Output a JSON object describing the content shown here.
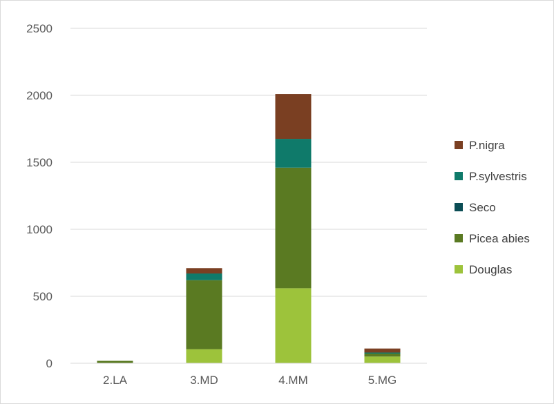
{
  "chart_data": {
    "type": "bar",
    "stacked": true,
    "categories": [
      "2.LA",
      "3.MD",
      "4.MM",
      "5.MG"
    ],
    "series": [
      {
        "name": "Douglas",
        "color": "#9dc33b",
        "values": [
          0,
          105,
          560,
          50
        ]
      },
      {
        "name": "Picea abies",
        "color": "#5a7a22",
        "values": [
          18,
          515,
          900,
          22
        ]
      },
      {
        "name": "Seco",
        "color": "#0b4d55",
        "values": [
          0,
          0,
          0,
          0
        ]
      },
      {
        "name": "P.sylvestris",
        "color": "#0f7a6a",
        "values": [
          0,
          50,
          215,
          8
        ]
      },
      {
        "name": "P.nigra",
        "color": "#7a3f22",
        "values": [
          0,
          40,
          335,
          30
        ]
      }
    ],
    "legend_order": [
      "P.nigra",
      "P.sylvestris",
      "Seco",
      "Picea abies",
      "Douglas"
    ],
    "yticks": [
      "0",
      "500",
      "1000",
      "1500",
      "2000",
      "2500"
    ],
    "ylim": [
      0,
      2500
    ],
    "grid": true,
    "legend_position": "right",
    "title": "",
    "xlabel": "",
    "ylabel": ""
  }
}
